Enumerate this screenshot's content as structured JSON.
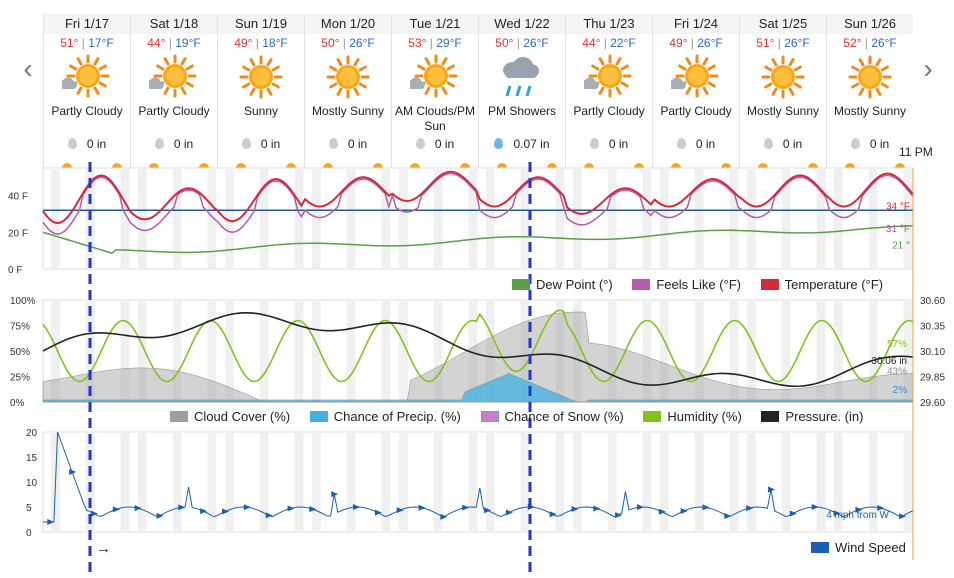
{
  "nav": {
    "prev": "‹",
    "next": "›"
  },
  "days": [
    {
      "name": "Fri 1/17",
      "hi": "51°",
      "lo": "17°F",
      "cond": "Partly Cloudy",
      "icon": "partly-cloudy-icon",
      "precip": "0 in",
      "rain": false
    },
    {
      "name": "Sat 1/18",
      "hi": "44°",
      "lo": "19°F",
      "cond": "Partly Cloudy",
      "icon": "partly-cloudy-icon",
      "precip": "0 in",
      "rain": false
    },
    {
      "name": "Sun 1/19",
      "hi": "49°",
      "lo": "18°F",
      "cond": "Sunny",
      "icon": "sunny-icon",
      "precip": "0 in",
      "rain": false
    },
    {
      "name": "Mon 1/20",
      "hi": "50°",
      "lo": "26°F",
      "cond": "Mostly Sunny",
      "icon": "mostly-sunny-icon",
      "precip": "0 in",
      "rain": false
    },
    {
      "name": "Tue 1/21",
      "hi": "53°",
      "lo": "29°F",
      "cond": "AM Clouds/PM Sun",
      "icon": "partly-cloudy-icon",
      "precip": "0 in",
      "rain": false
    },
    {
      "name": "Wed 1/22",
      "hi": "50°",
      "lo": "26°F",
      "cond": "PM Showers",
      "icon": "showers-icon",
      "precip": "0.07 in",
      "rain": true
    },
    {
      "name": "Thu 1/23",
      "hi": "44°",
      "lo": "22°F",
      "cond": "Partly Cloudy",
      "icon": "partly-cloudy-icon",
      "precip": "0 in",
      "rain": false
    },
    {
      "name": "Fri 1/24",
      "hi": "49°",
      "lo": "26°F",
      "cond": "Partly Cloudy",
      "icon": "partly-cloudy-icon",
      "precip": "0 in",
      "rain": false
    },
    {
      "name": "Sat 1/25",
      "hi": "51°",
      "lo": "26°F",
      "cond": "Mostly Sunny",
      "icon": "mostly-sunny-icon",
      "precip": "0 in",
      "rain": false
    },
    {
      "name": "Sun 1/26",
      "hi": "52°",
      "lo": "26°F",
      "cond": "Mostly Sunny",
      "icon": "mostly-sunny-icon",
      "precip": "0 in",
      "rain": false
    }
  ],
  "time_label": "11 PM",
  "temp_panel": {
    "y_ticks": [
      "40 F",
      "20 F",
      "0 F"
    ],
    "current": {
      "temp": "34 °F",
      "feels": "31 °F",
      "dew": "21 °"
    },
    "legend": {
      "dew": "Dew Point (°)",
      "feels": "Feels Like (°F)",
      "temp": "Temperature (°F)"
    },
    "colors": {
      "temp": "#d42b3a",
      "feels": "#b75aa8",
      "dew": "#5a9e4a",
      "ref": "#1f5a9c"
    }
  },
  "cloud_panel": {
    "y_left": [
      "100%",
      "75%",
      "50%",
      "25%",
      "0%"
    ],
    "y_right": [
      "30.60",
      "30.35",
      "30.10",
      "29.85",
      "29.60"
    ],
    "current": {
      "humidity": "57%",
      "pressure": "30.06 in",
      "cloud": "43%",
      "precip": "2%"
    },
    "legend": {
      "cloud": "Cloud Cover (%)",
      "precip": "Chance of Precip. (%)",
      "snow": "Chance of Snow (%)",
      "humidity": "Humidity (%)",
      "pressure": "Pressure. (in)"
    },
    "colors": {
      "cloud": "#9e9e9e",
      "precip": "#3fb2e0",
      "snow": "#c77fc8",
      "humidity": "#82c21c",
      "pressure": "#222222"
    }
  },
  "wind_panel": {
    "y_ticks": [
      "20",
      "15",
      "10",
      "5",
      "0"
    ],
    "current": "4 mph from W",
    "arrow": "→",
    "legend": "Wind Speed",
    "color": "#1a5fb4"
  },
  "markers": {
    "color": "#2233dd"
  }
}
